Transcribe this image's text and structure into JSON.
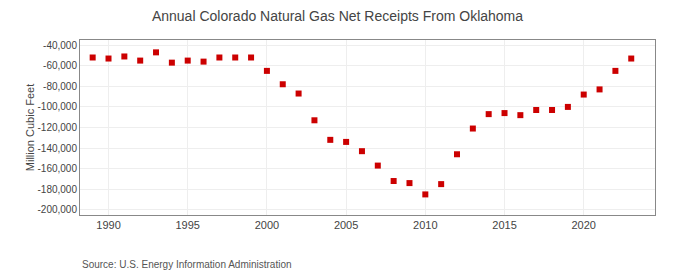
{
  "chart_data": {
    "type": "scatter",
    "title": "Annual Colorado Natural Gas Net Receipts From Oklahoma",
    "ylabel": "Million Cubic Feet",
    "annotations": [
      "Source: U.S. Energy Information Administration"
    ],
    "x": [
      1989,
      1990,
      1991,
      1992,
      1993,
      1994,
      1995,
      1996,
      1997,
      1998,
      1999,
      2000,
      2001,
      2002,
      2003,
      2004,
      2005,
      2006,
      2007,
      2008,
      2009,
      2010,
      2011,
      2012,
      2013,
      2014,
      2015,
      2016,
      2017,
      2018,
      2019,
      2020,
      2021,
      2022,
      2023
    ],
    "values": [
      -52000,
      -53000,
      -51000,
      -55000,
      -47000,
      -57000,
      -55000,
      -56000,
      -52000,
      -52000,
      -52000,
      -65000,
      -78000,
      -87000,
      -113000,
      -132000,
      -134000,
      -143000,
      -157000,
      -172000,
      -174000,
      -185000,
      -175000,
      -146000,
      -121000,
      -107000,
      -106000,
      -108000,
      -103000,
      -103000,
      -100000,
      -88000,
      -83000,
      -65000,
      -53000
    ],
    "color": "#cc0000",
    "marker": "square",
    "xlim": [
      1988.2,
      2024.5
    ],
    "xticks": [
      1990,
      1995,
      2000,
      2005,
      2010,
      2015,
      2020
    ],
    "ylim": [
      -205000,
      -35000
    ],
    "yticks": [
      {
        "value": -200000,
        "label": "-200,000"
      },
      {
        "value": -180000,
        "label": "-180,000"
      },
      {
        "value": -160000,
        "label": "-160,000"
      },
      {
        "value": -140000,
        "label": "-140,000"
      },
      {
        "value": -120000,
        "label": "-120,000"
      },
      {
        "value": -100000,
        "label": "-100,000"
      },
      {
        "value": -80000,
        "label": "-80,000"
      },
      {
        "value": -60000,
        "label": "-60,000"
      },
      {
        "value": -40000,
        "label": "-40,000"
      }
    ],
    "grid": true
  }
}
